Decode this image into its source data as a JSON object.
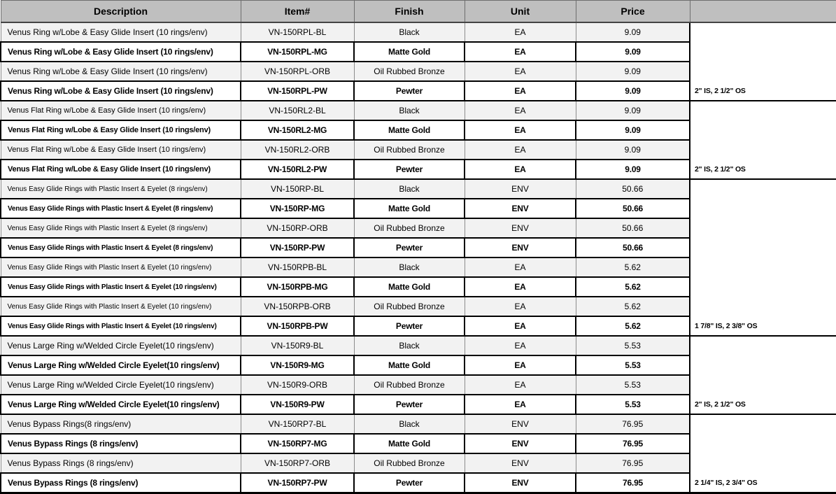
{
  "colors": {
    "header_bg": "#bfbfbf",
    "row_stripe_bg": "#f2f2f2",
    "bold_row_bg": "#ffffff",
    "grid_border": "#8c8c8c",
    "bold_border": "#000000"
  },
  "table": {
    "headers": [
      "Description",
      "Item#",
      "Finish",
      "Unit",
      "Price",
      ""
    ],
    "groups": [
      {
        "note": "2\" IS, 2 1/2\" OS",
        "rows": [
          {
            "description": "Venus  Ring w/Lobe & Easy Glide Insert (10 rings/env)",
            "item": "VN-150RPL-BL",
            "finish": "Black",
            "unit": "EA",
            "price": "9.09"
          },
          {
            "description": "Venus  Ring w/Lobe & Easy Glide Insert (10 rings/env)",
            "item": "VN-150RPL-MG",
            "finish": "Matte Gold",
            "unit": "EA",
            "price": "9.09"
          },
          {
            "description": "Venus  Ring w/Lobe & Easy Glide Insert (10 rings/env)",
            "item": "VN-150RPL-ORB",
            "finish": "Oil Rubbed Bronze",
            "unit": "EA",
            "price": "9.09"
          },
          {
            "description": "Venus  Ring w/Lobe & Easy Glide Insert (10 rings/env)",
            "item": "VN-150RPL-PW",
            "finish": "Pewter",
            "unit": "EA",
            "price": "9.09"
          }
        ]
      },
      {
        "note": "2\" IS, 2 1/2\" OS",
        "rows": [
          {
            "description": "Venus Flat Ring w/Lobe & Easy Glide Insert (10 rings/env)",
            "item": "VN-150RL2-BL",
            "finish": "Black",
            "unit": "EA",
            "price": "9.09"
          },
          {
            "description": "Venus Flat Ring w/Lobe & Easy Glide Insert (10 rings/env)",
            "item": "VN-150RL2-MG",
            "finish": "Matte Gold",
            "unit": "EA",
            "price": "9.09"
          },
          {
            "description": "Venus Flat Ring w/Lobe & Easy Glide Insert (10 rings/env)",
            "item": "VN-150RL2-ORB",
            "finish": "Oil Rubbed Bronze",
            "unit": "EA",
            "price": "9.09"
          },
          {
            "description": "Venus Flat Ring w/Lobe & Easy Glide Insert (10 rings/env)",
            "item": "VN-150RL2-PW",
            "finish": "Pewter",
            "unit": "EA",
            "price": "9.09"
          }
        ]
      },
      {
        "note": "1 7/8\" IS, 2 3/8\" OS",
        "rows": [
          {
            "description": "Venus Easy Glide Rings with Plastic Insert & Eyelet (8 rings/env)",
            "item": "VN-150RP-BL",
            "finish": "Black",
            "unit": "ENV",
            "price": "50.66"
          },
          {
            "description": "Venus Easy Glide Rings with Plastic Insert & Eyelet (8 rings/env)",
            "item": "VN-150RP-MG",
            "finish": "Matte Gold",
            "unit": "ENV",
            "price": "50.66"
          },
          {
            "description": "Venus Easy Glide Rings with Plastic Insert & Eyelet (8 rings/env)",
            "item": "VN-150RP-ORB",
            "finish": "Oil Rubbed Bronze",
            "unit": "ENV",
            "price": "50.66"
          },
          {
            "description": "Venus Easy Glide Rings with Plastic Insert & Eyelet (8 rings/env)",
            "item": "VN-150RP-PW",
            "finish": "Pewter",
            "unit": "ENV",
            "price": "50.66"
          },
          {
            "description": "Venus Easy Glide Rings with Plastic Insert & Eyelet (10 rings/env)",
            "item": "VN-150RPB-BL",
            "finish": "Black",
            "unit": "EA",
            "price": "5.62"
          },
          {
            "description": "Venus Easy Glide Rings with Plastic Insert & Eyelet (10 rings/env)",
            "item": "VN-150RPB-MG",
            "finish": "Matte Gold",
            "unit": "EA",
            "price": "5.62"
          },
          {
            "description": "Venus Easy Glide Rings with Plastic Insert & Eyelet (10 rings/env)",
            "item": "VN-150RPB-ORB",
            "finish": "Oil Rubbed Bronze",
            "unit": "EA",
            "price": "5.62"
          },
          {
            "description": "Venus Easy Glide Rings with Plastic Insert & Eyelet (10 rings/env)",
            "item": "VN-150RPB-PW",
            "finish": "Pewter",
            "unit": "EA",
            "price": "5.62"
          }
        ]
      },
      {
        "note": "2\" IS, 2 1/2\" OS",
        "rows": [
          {
            "description": "Venus Large Ring w/Welded Circle Eyelet(10 rings/env)",
            "item": "VN-150R9-BL",
            "finish": "Black",
            "unit": "EA",
            "price": "5.53"
          },
          {
            "description": "Venus Large Ring w/Welded Circle Eyelet(10 rings/env)",
            "item": "VN-150R9-MG",
            "finish": "Matte Gold",
            "unit": "EA",
            "price": "5.53"
          },
          {
            "description": "Venus Large Ring w/Welded Circle Eyelet(10 rings/env)",
            "item": "VN-150R9-ORB",
            "finish": "Oil Rubbed Bronze",
            "unit": "EA",
            "price": "5.53"
          },
          {
            "description": "Venus Large Ring w/Welded Circle Eyelet(10 rings/env)",
            "item": "VN-150R9-PW",
            "finish": "Pewter",
            "unit": "EA",
            "price": "5.53"
          }
        ]
      },
      {
        "note": "2 1/4\" IS, 2 3/4\" OS",
        "rows": [
          {
            "description": "Venus Bypass Rings(8 rings/env)",
            "item": "VN-150RP7-BL",
            "finish": "Black",
            "unit": "ENV",
            "price": "76.95"
          },
          {
            "description": "Venus Bypass Rings (8 rings/env)",
            "item": "VN-150RP7-MG",
            "finish": "Matte Gold",
            "unit": "ENV",
            "price": "76.95"
          },
          {
            "description": "Venus Bypass Rings (8 rings/env)",
            "item": "VN-150RP7-ORB",
            "finish": "Oil Rubbed Bronze",
            "unit": "ENV",
            "price": "76.95"
          },
          {
            "description": "Venus Bypass Rings (8 rings/env)",
            "item": "VN-150RP7-PW",
            "finish": "Pewter",
            "unit": "ENV",
            "price": "76.95"
          }
        ]
      }
    ]
  }
}
